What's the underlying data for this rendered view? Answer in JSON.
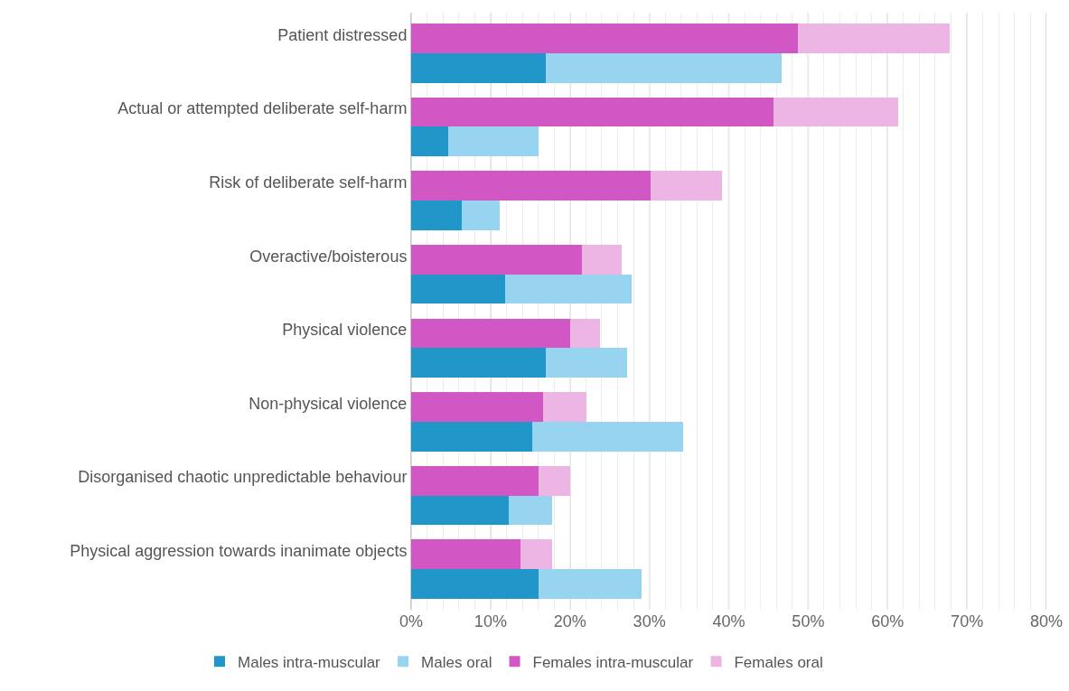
{
  "chart_data": {
    "type": "bar",
    "orientation": "horizontal",
    "stacked": true,
    "categories": [
      "Patient distressed",
      null,
      "Actual or attempted deliberate self-harm",
      null,
      "Risk of deliberate self-harm",
      null,
      "Overactive/boisterous",
      null,
      "Physical violence",
      null,
      "Non-physical violence",
      null,
      "Disorganised chaotic unpredictable behaviour",
      null,
      "Physical aggression towards inanimate objects",
      null
    ],
    "series": [
      {
        "name": "Males intra-muscular",
        "color": "#2196c8",
        "values": [
          null,
          17.0,
          null,
          4.7,
          null,
          6.4,
          null,
          11.8,
          null,
          17.0,
          null,
          15.3,
          null,
          12.3,
          null,
          16.0
        ]
      },
      {
        "name": "Males oral",
        "color": "#97d4ef",
        "values": [
          null,
          29.7,
          null,
          11.3,
          null,
          4.8,
          null,
          16.0,
          null,
          10.2,
          null,
          19.0,
          null,
          5.4,
          null,
          13.0
        ]
      },
      {
        "name": "Females intra-muscular",
        "color": "#d158c4",
        "values": [
          48.7,
          null,
          45.6,
          null,
          30.2,
          null,
          21.5,
          null,
          20.0,
          null,
          16.6,
          null,
          16.1,
          null,
          13.8,
          null
        ]
      },
      {
        "name": "Females oral",
        "color": "#ecb5e4",
        "values": [
          19.1,
          null,
          15.7,
          null,
          8.9,
          null,
          5.0,
          null,
          3.8,
          null,
          5.5,
          null,
          3.9,
          null,
          3.9,
          null
        ]
      }
    ],
    "xlim": [
      0,
      80
    ],
    "xticks": [
      {
        "value": 0,
        "label": "0%"
      },
      {
        "value": 2,
        "label": null
      },
      {
        "value": 4,
        "label": null
      },
      {
        "value": 6,
        "label": null
      },
      {
        "value": 8,
        "label": null
      },
      {
        "value": 10,
        "label": "10%"
      },
      {
        "value": 12,
        "label": null
      },
      {
        "value": 14,
        "label": null
      },
      {
        "value": 16,
        "label": null
      },
      {
        "value": 18,
        "label": null
      },
      {
        "value": 20,
        "label": "20%"
      },
      {
        "value": 22,
        "label": null
      },
      {
        "value": 24,
        "label": null
      },
      {
        "value": 26,
        "label": null
      },
      {
        "value": 28,
        "label": null
      },
      {
        "value": 30,
        "label": "30%"
      },
      {
        "value": 32,
        "label": null
      },
      {
        "value": 34,
        "label": null
      },
      {
        "value": 36,
        "label": null
      },
      {
        "value": 38,
        "label": null
      },
      {
        "value": 40,
        "label": "40%"
      },
      {
        "value": 42,
        "label": null
      },
      {
        "value": 44,
        "label": null
      },
      {
        "value": 46,
        "label": null
      },
      {
        "value": 48,
        "label": null
      },
      {
        "value": 50,
        "label": "50%"
      },
      {
        "value": 52,
        "label": null
      },
      {
        "value": 54,
        "label": null
      },
      {
        "value": 56,
        "label": null
      },
      {
        "value": 58,
        "label": null
      },
      {
        "value": 60,
        "label": "60%"
      },
      {
        "value": 62,
        "label": null
      },
      {
        "value": 64,
        "label": null
      },
      {
        "value": 66,
        "label": null
      },
      {
        "value": 68,
        "label": null
      },
      {
        "value": 70,
        "label": "70%"
      },
      {
        "value": 72,
        "label": null
      },
      {
        "value": 74,
        "label": null
      },
      {
        "value": 76,
        "label": null
      },
      {
        "value": 78,
        "label": null
      },
      {
        "value": 80,
        "label": "80%"
      }
    ],
    "grid": "x",
    "legend": "bottom"
  }
}
